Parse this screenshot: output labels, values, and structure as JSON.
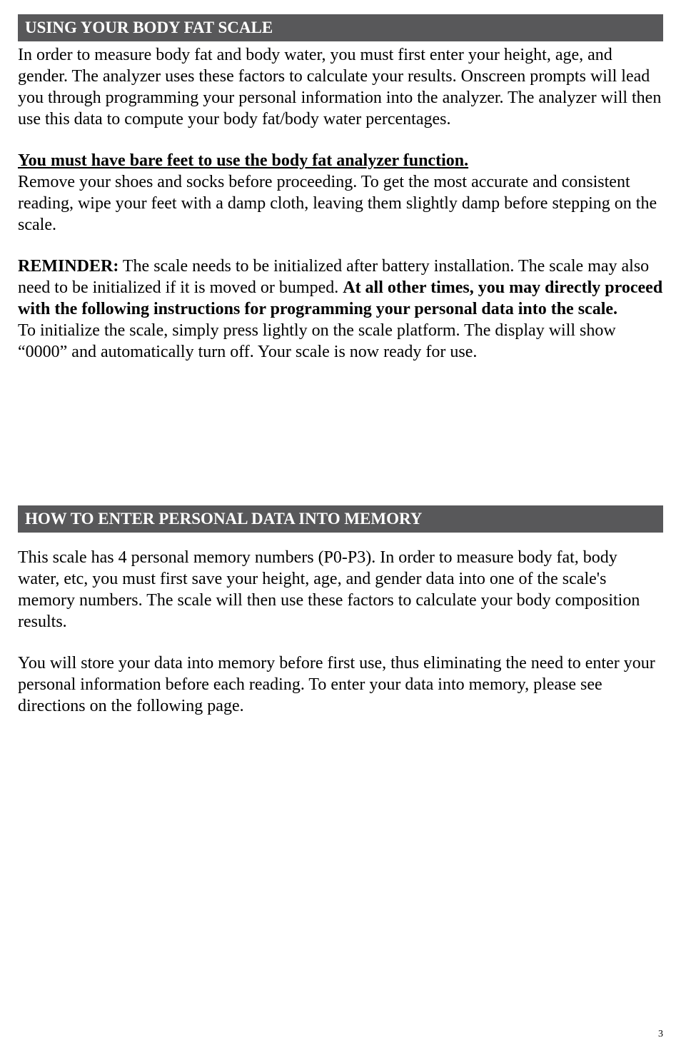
{
  "section1": {
    "header": "USING YOUR BODY FAT SCALE",
    "para1": "In order to measure body fat and body water, you must first enter your height, age, and gender. The analyzer uses these factors to calculate your results. Onscreen prompts will lead you through programming your personal information into the analyzer. The analyzer will then use this data to compute your body fat/body water percentages.",
    "underline_heading": "You must have bare feet to use the body fat analyzer function.",
    "para2": "Remove your shoes and socks before proceeding. To get the most accurate and consistent reading, wipe your feet with a damp cloth, leaving them slightly damp before stepping on the scale.",
    "reminder_label": "REMINDER:",
    "reminder_text1": " The scale needs to be initialized after battery installation. The scale may also need to be initialized if it is moved or bumped. ",
    "reminder_bold": "At all other times, you may directly proceed with the following instructions for programming your personal data into the scale.",
    "para3": "To initialize the scale, simply press lightly on the scale platform. The display will show “0000” and automatically turn off. Your scale is now ready for use."
  },
  "section2": {
    "header": "HOW TO ENTER PERSONAL DATA INTO MEMORY",
    "para1": "This scale has 4 personal memory numbers (P0-P3). In order to measure body fat, body water, etc, you must first save your height, age, and gender data into one of the scale's memory numbers. The scale will then use these factors to calculate your body composition results.",
    "para2": "You will store your data into memory before first use, thus eliminating the need to enter your personal information before each reading. To enter your data into memory, please see directions on the following page."
  },
  "page_number": "3"
}
